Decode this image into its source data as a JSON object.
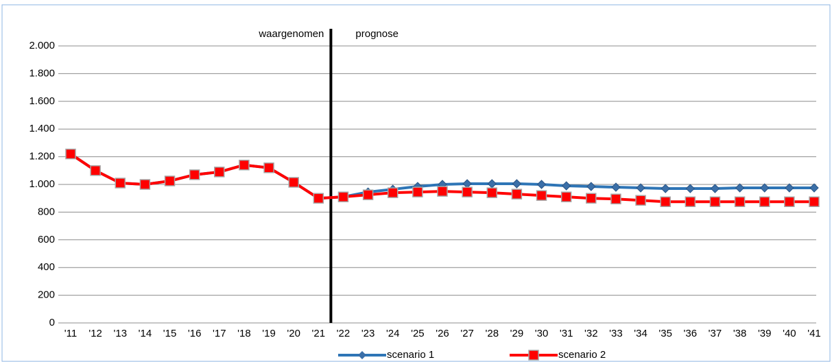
{
  "chart_data": {
    "type": "line",
    "annotations": [
      "waargenomen",
      "prognose"
    ],
    "categories": [
      "'11",
      "'12",
      "'13",
      "'14",
      "'15",
      "'16",
      "'17",
      "'18",
      "'19",
      "'20",
      "'21",
      "'22",
      "'23",
      "'24",
      "'25",
      "'26",
      "'27",
      "'28",
      "'29",
      "'30",
      "'31",
      "'32",
      "'33",
      "'34",
      "'35",
      "'36",
      "'37",
      "'38",
      "'39",
      "'40",
      "'41"
    ],
    "series": [
      {
        "name": "scenario 1",
        "color": "#2e75b6",
        "values": [
          1220,
          1100,
          1010,
          1000,
          1025,
          1070,
          1090,
          1140,
          1120,
          1015,
          900,
          910,
          945,
          965,
          985,
          1000,
          1005,
          1005,
          1005,
          1000,
          990,
          985,
          980,
          975,
          970,
          970,
          970,
          975,
          975,
          975,
          975
        ]
      },
      {
        "name": "scenario 2",
        "color": "#ff0000",
        "values": [
          1220,
          1100,
          1010,
          1000,
          1025,
          1070,
          1090,
          1140,
          1120,
          1015,
          900,
          910,
          925,
          940,
          945,
          950,
          945,
          940,
          930,
          920,
          910,
          900,
          895,
          885,
          875,
          875,
          875,
          875,
          875,
          875,
          875
        ]
      }
    ],
    "ylim": [
      0,
      2000
    ],
    "yticks": [
      0,
      200,
      400,
      600,
      800,
      {
        "value": 1000,
        "label": "1.000"
      },
      {
        "value": 1200,
        "label": "1.200"
      },
      {
        "value": 1400,
        "label": "1.400"
      },
      {
        "value": 1600,
        "label": "1.600"
      },
      {
        "value": 1800,
        "label": "1.800"
      },
      {
        "value": 2000,
        "label": "2.000"
      }
    ],
    "grid": true
  }
}
